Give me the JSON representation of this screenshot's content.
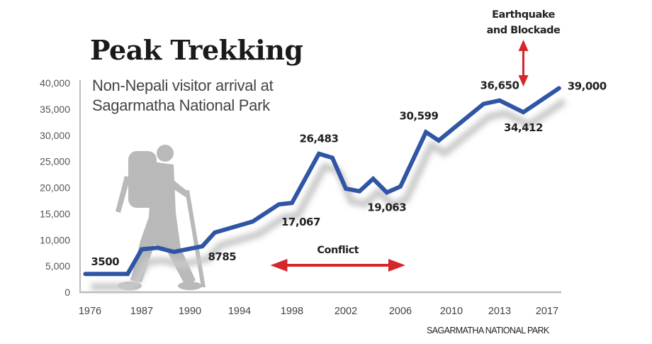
{
  "chart_data": {
    "type": "line",
    "title": "Peak Trekking",
    "subtitle": [
      "Non-Nepali visitor arrival at",
      "Sagarmatha National Park"
    ],
    "xlabel": "",
    "ylabel": "",
    "ylim": [
      0,
      40000
    ],
    "y_ticks": [
      "0",
      "5,000",
      "10,000",
      "15,000",
      "20,000",
      "25,000",
      "30,000",
      "35,000",
      "40,000"
    ],
    "x_ticks": [
      "1976",
      "1987",
      "1990",
      "1994",
      "1998",
      "2002",
      "2006",
      "2010",
      "2013",
      "2017"
    ],
    "grid": false,
    "legend": "none",
    "series": [
      {
        "color": "#2f55a4",
        "x": [
          1975,
          1984,
          1987,
          1988,
          1989,
          1991,
          1992,
          1995,
          1997,
          1998,
          2000,
          2001,
          2002,
          2003,
          2004,
          2005,
          2006,
          2008,
          2009,
          2012,
          2013,
          2015,
          2018
        ],
        "values": [
          3500,
          3500,
          8200,
          8500,
          7700,
          8785,
          11400,
          13500,
          16800,
          17067,
          26483,
          25700,
          19800,
          19300,
          21700,
          19063,
          20200,
          30599,
          29000,
          36000,
          36650,
          34412,
          39000
        ]
      }
    ],
    "data_labels": [
      {
        "x": 1975,
        "text": "3500"
      },
      {
        "x": 1991,
        "text": "8785"
      },
      {
        "x": 1998,
        "text": "17,067"
      },
      {
        "x": 2000,
        "text": "26,483"
      },
      {
        "x": 2005,
        "text": "19,063"
      },
      {
        "x": 2008,
        "text": "30,599"
      },
      {
        "x": 2013,
        "text": "36,650"
      },
      {
        "x": 2015,
        "text": "34,412"
      },
      {
        "x": 2018,
        "text": "39,000"
      }
    ],
    "annotations": {
      "conflict": {
        "text": "Conflict",
        "from": 1997,
        "to": 2006,
        "color": "#d7262b"
      },
      "earthquake": {
        "lines": [
          "Earthquake",
          "and Blockade"
        ],
        "x": 2015,
        "color": "#d7262b"
      }
    },
    "source": "SAGARMATHA NATIONAL PARK"
  }
}
